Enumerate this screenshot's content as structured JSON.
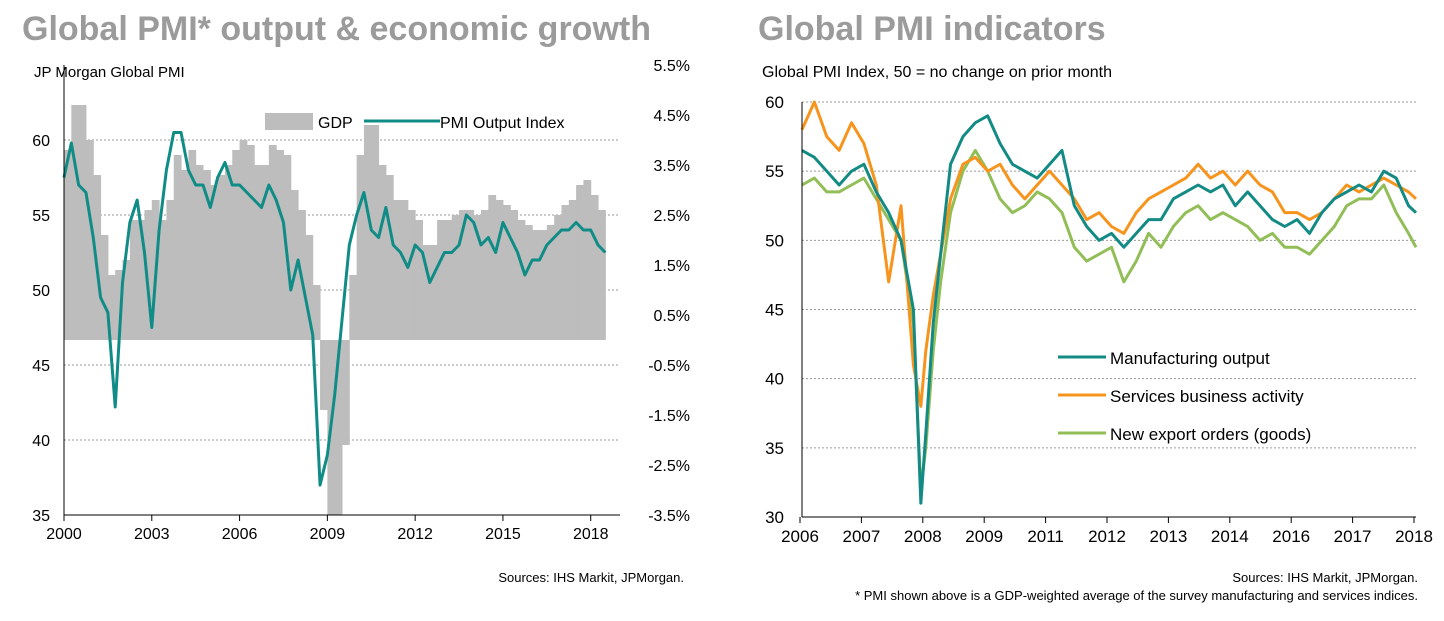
{
  "colors": {
    "gdp_bar": "#bdbdbd",
    "pmi_output": "#108c87",
    "manufacturing": "#138b84",
    "services": "#f7941d",
    "exports": "#92be57",
    "title": "#9b9b9b"
  },
  "left": {
    "title": "Global PMI* output & economic growth",
    "subtitle": "JP Morgan Global  PMI",
    "source": "Sources: IHS Markit, JPMorgan."
  },
  "right": {
    "title": "Global PMI indicators",
    "subtitle": "Global  PMI Index, 50 = no change on prior month",
    "source": "Sources: IHS Markit, JPMorgan.",
    "footnote": "* PMI shown above is a GDP-weighted average of the survey manufacturing and services indices."
  },
  "chart_data": [
    {
      "type": "bar+line",
      "title": "Global PMI* output & economic growth",
      "subtitle": "JP Morgan Global  PMI",
      "x_ticks": [
        "2000",
        "2003",
        "2006",
        "2009",
        "2012",
        "2015",
        "2018"
      ],
      "xlim": [
        2000,
        2019
      ],
      "y_left": {
        "range": [
          35,
          65
        ],
        "ticks": [
          "35",
          "40",
          "45",
          "50",
          "55",
          "60"
        ]
      },
      "y_right": {
        "range": [
          -3.5,
          5.5
        ],
        "ticks": [
          "-3.5%",
          "-2.5%",
          "-1.5%",
          "-0.5%",
          "0.5%",
          "1.5%",
          "2.5%",
          "3.5%",
          "4.5%",
          "5.5%"
        ]
      },
      "grid": true,
      "legend": "top",
      "series": [
        {
          "name": "GDP",
          "kind": "bar",
          "axis": "right",
          "x": [
            2000.0,
            2000.25,
            2000.5,
            2000.75,
            2001.0,
            2001.25,
            2001.5,
            2001.75,
            2002.0,
            2002.25,
            2002.5,
            2002.75,
            2003.0,
            2003.25,
            2003.5,
            2003.75,
            2004.0,
            2004.25,
            2004.5,
            2004.75,
            2005.0,
            2005.25,
            2005.5,
            2005.75,
            2006.0,
            2006.25,
            2006.5,
            2006.75,
            2007.0,
            2007.25,
            2007.5,
            2007.75,
            2008.0,
            2008.25,
            2008.5,
            2008.75,
            2009.0,
            2009.25,
            2009.5,
            2009.75,
            2010.0,
            2010.25,
            2010.5,
            2010.75,
            2011.0,
            2011.25,
            2011.5,
            2011.75,
            2012.0,
            2012.25,
            2012.5,
            2012.75,
            2013.0,
            2013.25,
            2013.5,
            2013.75,
            2014.0,
            2014.25,
            2014.5,
            2014.75,
            2015.0,
            2015.25,
            2015.5,
            2015.75,
            2016.0,
            2016.25,
            2016.5,
            2016.75,
            2017.0,
            2017.25,
            2017.5,
            2017.75,
            2018.0,
            2018.25
          ],
          "values": [
            3.8,
            4.7,
            4.7,
            4.0,
            3.3,
            2.1,
            1.3,
            1.4,
            1.6,
            2.4,
            2.4,
            2.6,
            2.8,
            2.4,
            2.8,
            3.7,
            3.4,
            3.8,
            3.5,
            3.4,
            3.1,
            3.3,
            3.5,
            3.8,
            4.0,
            3.9,
            3.5,
            3.5,
            3.9,
            3.8,
            3.7,
            3.0,
            2.6,
            2.1,
            1.1,
            -1.4,
            -3.5,
            -3.5,
            -2.1,
            1.3,
            3.7,
            4.3,
            4.3,
            3.5,
            3.3,
            2.8,
            2.8,
            2.6,
            2.4,
            1.9,
            1.9,
            2.4,
            2.4,
            2.5,
            2.6,
            2.6,
            2.5,
            2.6,
            2.9,
            2.8,
            2.7,
            2.6,
            2.4,
            2.3,
            2.2,
            2.2,
            2.3,
            2.5,
            2.7,
            2.8,
            3.1,
            3.2,
            2.9,
            2.6
          ]
        },
        {
          "name": "PMI Output Index",
          "kind": "line",
          "axis": "left",
          "x": [
            2000.0,
            2000.25,
            2000.5,
            2000.75,
            2001.0,
            2001.25,
            2001.5,
            2001.75,
            2002.0,
            2002.25,
            2002.5,
            2002.75,
            2003.0,
            2003.25,
            2003.5,
            2003.75,
            2004.0,
            2004.25,
            2004.5,
            2004.75,
            2005.0,
            2005.25,
            2005.5,
            2005.75,
            2006.0,
            2006.25,
            2006.5,
            2006.75,
            2007.0,
            2007.25,
            2007.5,
            2007.75,
            2008.0,
            2008.25,
            2008.5,
            2008.75,
            2009.0,
            2009.25,
            2009.5,
            2009.75,
            2010.0,
            2010.25,
            2010.5,
            2010.75,
            2011.0,
            2011.25,
            2011.5,
            2011.75,
            2012.0,
            2012.25,
            2012.5,
            2012.75,
            2013.0,
            2013.25,
            2013.5,
            2013.75,
            2014.0,
            2014.25,
            2014.5,
            2014.75,
            2015.0,
            2015.25,
            2015.5,
            2015.75,
            2016.0,
            2016.25,
            2016.5,
            2016.75,
            2017.0,
            2017.25,
            2017.5,
            2017.75,
            2018.0,
            2018.25,
            2018.5
          ],
          "values": [
            57.5,
            59.8,
            57.0,
            56.5,
            53.5,
            49.5,
            48.5,
            42.2,
            50.5,
            54.5,
            56.0,
            52.5,
            47.5,
            54.0,
            58.0,
            60.5,
            60.5,
            58.0,
            57.0,
            57.0,
            55.5,
            57.5,
            58.5,
            57.0,
            57.0,
            56.5,
            56.0,
            55.5,
            57.0,
            56.0,
            54.5,
            50.0,
            52.0,
            49.5,
            47.0,
            37.0,
            39.0,
            43.0,
            48.0,
            53.0,
            55.0,
            56.5,
            54.0,
            53.5,
            55.5,
            53.0,
            52.5,
            51.5,
            53.0,
            52.5,
            50.5,
            51.5,
            52.5,
            52.5,
            53.0,
            55.0,
            54.5,
            53.0,
            53.5,
            52.5,
            54.5,
            53.5,
            52.5,
            51.0,
            52.0,
            52.0,
            53.0,
            53.5,
            54.0,
            54.0,
            54.5,
            54.0,
            54.0,
            53.0,
            52.5
          ]
        }
      ]
    },
    {
      "type": "line",
      "title": "Global PMI indicators",
      "subtitle": "Global  PMI Index, 50 = no change on prior month",
      "x_ticks": [
        "2006",
        "2007",
        "2008",
        "2009",
        "2011",
        "2012",
        "2013",
        "2014",
        "2016",
        "2017",
        "2018"
      ],
      "xlim": [
        2006,
        2018.4
      ],
      "ylim": [
        30,
        60
      ],
      "y_ticks": [
        "30",
        "35",
        "40",
        "45",
        "50",
        "55",
        "60"
      ],
      "grid": true,
      "legend": "bottom-center",
      "series": [
        {
          "name": "Manufacturing output",
          "x": [
            2006.0,
            2006.25,
            2006.5,
            2006.75,
            2007.0,
            2007.25,
            2007.5,
            2007.75,
            2008.0,
            2008.25,
            2008.4,
            2008.5,
            2008.65,
            2008.8,
            2009.0,
            2009.25,
            2009.5,
            2009.75,
            2010.0,
            2010.25,
            2010.5,
            2010.75,
            2011.0,
            2011.25,
            2011.5,
            2011.75,
            2012.0,
            2012.25,
            2012.5,
            2012.75,
            2013.0,
            2013.25,
            2013.5,
            2013.75,
            2014.0,
            2014.25,
            2014.5,
            2014.75,
            2015.0,
            2015.25,
            2015.5,
            2015.75,
            2016.0,
            2016.25,
            2016.5,
            2016.75,
            2017.0,
            2017.25,
            2017.5,
            2017.75,
            2018.0,
            2018.25,
            2018.4
          ],
          "values": [
            56.5,
            56.0,
            55.0,
            54.0,
            55.0,
            55.5,
            53.5,
            52.0,
            50.0,
            45.0,
            31.0,
            36.0,
            44.0,
            49.0,
            55.5,
            57.5,
            58.5,
            59.0,
            57.0,
            55.5,
            55.0,
            54.5,
            55.5,
            56.5,
            52.5,
            51.0,
            50.0,
            50.5,
            49.5,
            50.5,
            51.5,
            51.5,
            53.0,
            53.5,
            54.0,
            53.5,
            54.0,
            52.5,
            53.5,
            52.5,
            51.5,
            51.0,
            51.5,
            50.5,
            52.0,
            53.0,
            53.5,
            54.0,
            53.5,
            55.0,
            54.5,
            52.5,
            52.0
          ]
        },
        {
          "name": "Services business activity",
          "x": [
            2006.0,
            2006.25,
            2006.5,
            2006.75,
            2007.0,
            2007.25,
            2007.5,
            2007.75,
            2008.0,
            2008.25,
            2008.4,
            2008.5,
            2008.65,
            2008.8,
            2009.0,
            2009.25,
            2009.5,
            2009.75,
            2010.0,
            2010.25,
            2010.5,
            2010.75,
            2011.0,
            2011.25,
            2011.5,
            2011.75,
            2012.0,
            2012.25,
            2012.5,
            2012.75,
            2013.0,
            2013.25,
            2013.5,
            2013.75,
            2014.0,
            2014.25,
            2014.5,
            2014.75,
            2015.0,
            2015.25,
            2015.5,
            2015.75,
            2016.0,
            2016.25,
            2016.5,
            2016.75,
            2017.0,
            2017.25,
            2017.5,
            2017.75,
            2018.0,
            2018.25,
            2018.4
          ],
          "values": [
            58.0,
            60.0,
            57.5,
            56.5,
            58.5,
            57.0,
            54.0,
            47.0,
            52.5,
            41.0,
            38.0,
            42.0,
            46.0,
            49.0,
            53.0,
            55.5,
            56.0,
            55.0,
            55.5,
            54.0,
            53.0,
            54.0,
            55.0,
            54.0,
            53.0,
            51.5,
            52.0,
            51.0,
            50.5,
            52.0,
            53.0,
            53.5,
            54.0,
            54.5,
            55.5,
            54.5,
            55.0,
            54.0,
            55.0,
            54.0,
            53.5,
            52.0,
            52.0,
            51.5,
            52.0,
            53.0,
            54.0,
            53.5,
            54.0,
            54.5,
            54.0,
            53.5,
            53.0
          ]
        },
        {
          "name": "New export orders (goods)",
          "x": [
            2006.0,
            2006.25,
            2006.5,
            2006.75,
            2007.0,
            2007.25,
            2007.5,
            2007.75,
            2008.0,
            2008.25,
            2008.4,
            2008.5,
            2008.65,
            2008.8,
            2009.0,
            2009.25,
            2009.5,
            2009.75,
            2010.0,
            2010.25,
            2010.5,
            2010.75,
            2011.0,
            2011.25,
            2011.5,
            2011.75,
            2012.0,
            2012.25,
            2012.5,
            2012.75,
            2013.0,
            2013.25,
            2013.5,
            2013.75,
            2014.0,
            2014.25,
            2014.5,
            2014.75,
            2015.0,
            2015.25,
            2015.5,
            2015.75,
            2016.0,
            2016.25,
            2016.5,
            2016.75,
            2017.0,
            2017.25,
            2017.5,
            2017.75,
            2018.0,
            2018.25,
            2018.4
          ],
          "values": [
            54.0,
            54.5,
            53.5,
            53.5,
            54.0,
            54.5,
            53.0,
            51.5,
            50.0,
            44.0,
            32.0,
            35.0,
            42.0,
            47.0,
            52.0,
            55.0,
            56.5,
            55.0,
            53.0,
            52.0,
            52.5,
            53.5,
            53.0,
            52.0,
            49.5,
            48.5,
            49.0,
            49.5,
            47.0,
            48.5,
            50.5,
            49.5,
            51.0,
            52.0,
            52.5,
            51.5,
            52.0,
            51.5,
            51.0,
            50.0,
            50.5,
            49.5,
            49.5,
            49.0,
            50.0,
            51.0,
            52.5,
            53.0,
            53.0,
            54.0,
            52.0,
            50.5,
            49.5
          ]
        }
      ]
    }
  ]
}
